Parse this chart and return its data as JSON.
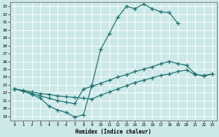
{
  "xlabel": "Humidex (Indice chaleur)",
  "bg_color": "#cce8e8",
  "grid_color": "#ffffff",
  "line_color": "#1a7070",
  "xlim": [
    -0.5,
    23.5
  ],
  "ylim": [
    18.5,
    33.5
  ],
  "xticks": [
    0,
    1,
    2,
    3,
    4,
    5,
    6,
    7,
    8,
    9,
    10,
    11,
    12,
    13,
    14,
    15,
    16,
    17,
    18,
    19,
    20,
    21,
    22,
    23
  ],
  "yticks": [
    19,
    20,
    21,
    22,
    23,
    24,
    25,
    26,
    27,
    28,
    29,
    30,
    31,
    32,
    33
  ],
  "line1_x": [
    0,
    1,
    2,
    3,
    4,
    5,
    6,
    7,
    8,
    9,
    10,
    11,
    12,
    13,
    14,
    15,
    16,
    17,
    18,
    19
  ],
  "line1_y": [
    22.5,
    22.2,
    21.8,
    21.3,
    20.3,
    19.8,
    19.5,
    18.9,
    19.2,
    23.0,
    27.5,
    29.5,
    31.6,
    33.0,
    32.7,
    33.3,
    32.7,
    32.3,
    32.2,
    30.8
  ],
  "line2_x": [
    0,
    1,
    2,
    3,
    4,
    5,
    6,
    7,
    8,
    9,
    10,
    11,
    12,
    13,
    14,
    15,
    16,
    17,
    18,
    19,
    20,
    21,
    22,
    23
  ],
  "line2_y": [
    22.5,
    22.2,
    21.9,
    21.6,
    21.3,
    21.0,
    20.8,
    20.6,
    22.5,
    22.8,
    23.2,
    23.6,
    24.0,
    24.3,
    24.7,
    25.0,
    25.3,
    25.7,
    26.0,
    25.7,
    25.5,
    24.4,
    24.1,
    24.4
  ],
  "line3_x": [
    0,
    1,
    2,
    3,
    4,
    5,
    6,
    7,
    8,
    9,
    10,
    11,
    12,
    13,
    14,
    15,
    16,
    17,
    18,
    19,
    20,
    21,
    22,
    23
  ],
  "line3_y": [
    22.5,
    22.3,
    22.1,
    21.9,
    21.8,
    21.6,
    21.5,
    21.4,
    21.3,
    21.2,
    21.7,
    22.1,
    22.5,
    22.9,
    23.3,
    23.6,
    23.9,
    24.2,
    24.4,
    24.7,
    24.9,
    24.3,
    24.2,
    24.4
  ]
}
